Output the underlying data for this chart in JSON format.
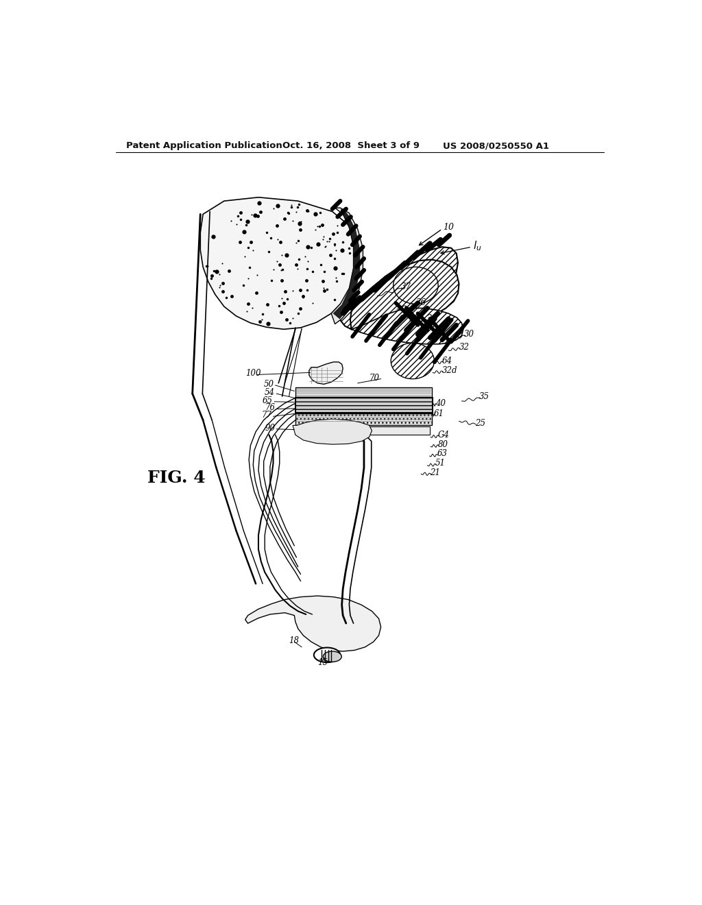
{
  "bg_color": "#ffffff",
  "header_left": "Patent Application Publication",
  "header_mid": "Oct. 16, 2008  Sheet 3 of 9",
  "header_right": "US 2008/0250550 A1",
  "fig_label": "FIG. 4",
  "header_fontsize": 9.5,
  "ann_fontsize": 8.5,
  "fig_label_fontsize": 18,
  "drawing": {
    "foam_bubble_seed": 42,
    "foam_bubble_count": 120,
    "foam_color": "#f8f8f8",
    "hatch_shell_color": "#ffffff",
    "plate_color": "#d0d0d0",
    "line_color": "#000000"
  }
}
